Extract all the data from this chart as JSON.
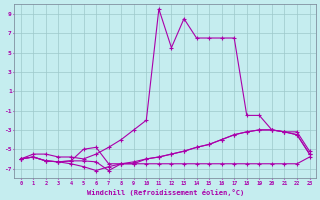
{
  "xlabel": "Windchill (Refroidissement éolien,°C)",
  "bg_color": "#c5edef",
  "line_color": "#aa00aa",
  "grid_color": "#9ec8ca",
  "x_ticks": [
    0,
    1,
    2,
    3,
    4,
    5,
    6,
    7,
    8,
    9,
    10,
    11,
    12,
    13,
    14,
    15,
    16,
    17,
    18,
    19,
    20,
    21,
    22,
    23
  ],
  "y_ticks": [
    -7,
    -5,
    -3,
    -1,
    1,
    3,
    5,
    7,
    9
  ],
  "ylim": [
    -8.0,
    10.0
  ],
  "xlim": [
    -0.5,
    23.5
  ],
  "series1": [
    -6.0,
    -5.5,
    -5.5,
    -5.8,
    -5.8,
    -6.0,
    -5.5,
    -4.8,
    -4.0,
    -3.0,
    -2.0,
    9.5,
    5.5,
    8.5,
    6.5,
    6.5,
    6.5,
    6.5,
    -1.5,
    -1.5,
    -3.0,
    -3.2,
    -3.2,
    -5.2
  ],
  "series2": [
    -6.0,
    -5.8,
    -6.2,
    -6.3,
    -6.2,
    -6.2,
    -6.3,
    -7.2,
    -6.5,
    -6.3,
    -6.0,
    -5.8,
    -5.5,
    -5.2,
    -4.8,
    -4.5,
    -4.0,
    -3.5,
    -3.2,
    -3.0,
    -3.0,
    -3.2,
    -3.5,
    -5.5
  ],
  "series3": [
    -6.0,
    -5.8,
    -6.2,
    -6.3,
    -6.2,
    -5.0,
    -4.8,
    -6.5,
    -6.5,
    -6.5,
    -6.0,
    -5.8,
    -5.5,
    -5.2,
    -4.8,
    -4.5,
    -4.0,
    -3.5,
    -3.2,
    -3.0,
    -3.0,
    -3.2,
    -3.5,
    -5.5
  ],
  "series4": [
    -6.0,
    -5.8,
    -6.2,
    -6.3,
    -6.5,
    -6.8,
    -7.2,
    -6.8,
    -6.5,
    -6.5,
    -6.5,
    -6.5,
    -6.5,
    -6.5,
    -6.5,
    -6.5,
    -6.5,
    -6.5,
    -6.5,
    -6.5,
    -6.5,
    -6.5,
    -6.5,
    -5.8
  ]
}
